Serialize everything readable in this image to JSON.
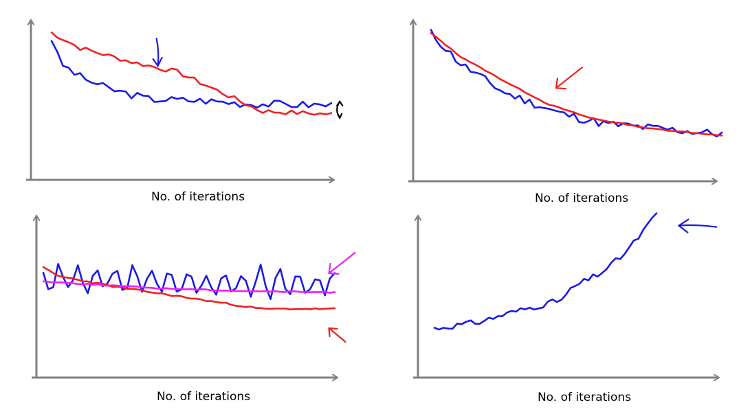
{
  "colors": {
    "axis": "#808080",
    "blue": "#1a1ae6",
    "red": "#f02020",
    "magenta": "#f020f0",
    "black": "#000000"
  },
  "chart_data": [
    {
      "type": "line",
      "title": "",
      "xlabel": "No. of iterations",
      "ylabel": "",
      "ylim": [
        0,
        100
      ],
      "x_count": 50,
      "series": [
        {
          "name": "blue",
          "color": "#1a1ae6",
          "base": [
            [
              0,
              88
            ],
            [
              3,
              72
            ],
            [
              10,
              63
            ],
            [
              20,
              55
            ],
            [
              35,
              48
            ],
            [
              55,
              47
            ],
            [
              70,
              45
            ],
            [
              100,
              44
            ]
          ],
          "noise": 2.6,
          "seed": 3,
          "ripple": 0
        },
        {
          "name": "red",
          "color": "#f02020",
          "base": [
            [
              0,
              92
            ],
            [
              10,
              82
            ],
            [
              30,
              72
            ],
            [
              45,
              66
            ],
            [
              60,
              53
            ],
            [
              75,
              40
            ],
            [
              100,
              38
            ]
          ],
          "noise": 1.6,
          "seed": 7,
          "ripple": 0
        }
      ],
      "annotations": [
        {
          "kind": "arrow-down",
          "color": "#1a1ae6",
          "at": [
            38,
            70
          ]
        },
        {
          "kind": "curl",
          "color": "#000000",
          "at": [
            103,
            41
          ]
        }
      ]
    },
    {
      "type": "line",
      "title": "",
      "xlabel": "No. of iterations",
      "ylabel": "",
      "ylim": [
        0,
        100
      ],
      "x_count": 60,
      "series": [
        {
          "name": "blue",
          "color": "#1a1ae6",
          "base": [
            [
              0,
              96
            ],
            [
              10,
              75
            ],
            [
              25,
              55
            ],
            [
              45,
              40
            ],
            [
              60,
              33
            ],
            [
              100,
              26
            ]
          ],
          "noise": 3.0,
          "seed": 11,
          "ripple": 0
        },
        {
          "name": "red",
          "color": "#f02020",
          "base": [
            [
              0,
              96
            ],
            [
              10,
              80
            ],
            [
              25,
              63
            ],
            [
              40,
              47
            ],
            [
              55,
              37
            ],
            [
              75,
              30
            ],
            [
              100,
              25
            ]
          ],
          "noise": 0.3,
          "seed": 13,
          "ripple": 0
        }
      ],
      "annotations": [
        {
          "kind": "arrow-diag",
          "color": "#f02020",
          "at": [
            43,
            58
          ]
        }
      ]
    },
    {
      "type": "line",
      "title": "",
      "xlabel": "No. of iterations",
      "ylabel": "",
      "ylim": [
        0,
        100
      ],
      "x_count": 60,
      "series": [
        {
          "name": "blue",
          "color": "#1a1ae6",
          "base": [
            [
              0,
              62
            ],
            [
              100,
              58
            ]
          ],
          "noise": 3.0,
          "seed": 21,
          "ripple": 11
        },
        {
          "name": "red",
          "color": "#f02020",
          "base": [
            [
              0,
              70
            ],
            [
              5,
              64
            ],
            [
              25,
              56
            ],
            [
              50,
              48
            ],
            [
              75,
              40
            ],
            [
              100,
              40
            ]
          ],
          "noise": 0.6,
          "seed": 23,
          "ripple": 0
        },
        {
          "name": "magenta",
          "color": "#f020f0",
          "base": [
            [
              0,
              60
            ],
            [
              40,
              55
            ],
            [
              70,
              53
            ],
            [
              100,
              52
            ]
          ],
          "noise": 0.4,
          "seed": 25,
          "ripple": 0
        }
      ],
      "annotations": [
        {
          "kind": "arrow-diag",
          "color": "#f020f0",
          "at": [
            98,
            66
          ]
        },
        {
          "kind": "arrow-diag-up",
          "color": "#f02020",
          "at": [
            98,
            26
          ]
        }
      ]
    },
    {
      "type": "line",
      "title": "",
      "xlabel": "No. of iterations",
      "ylabel": "",
      "ylim": [
        0,
        100
      ],
      "x_count": 50,
      "series": [
        {
          "name": "blue",
          "color": "#1a1ae6",
          "base": [
            [
              0,
              30
            ],
            [
              20,
              34
            ],
            [
              35,
              40
            ],
            [
              50,
              45
            ],
            [
              58,
              48
            ],
            [
              62,
              55
            ],
            [
              75,
              64
            ],
            [
              85,
              75
            ],
            [
              92,
              86
            ],
            [
              100,
              100
            ]
          ],
          "noise": 1.8,
          "seed": 31,
          "ripple": 0
        }
      ],
      "annotations": [
        {
          "kind": "arrow-left",
          "color": "#1a1ae6",
          "at": [
            110,
            93
          ]
        }
      ]
    }
  ]
}
